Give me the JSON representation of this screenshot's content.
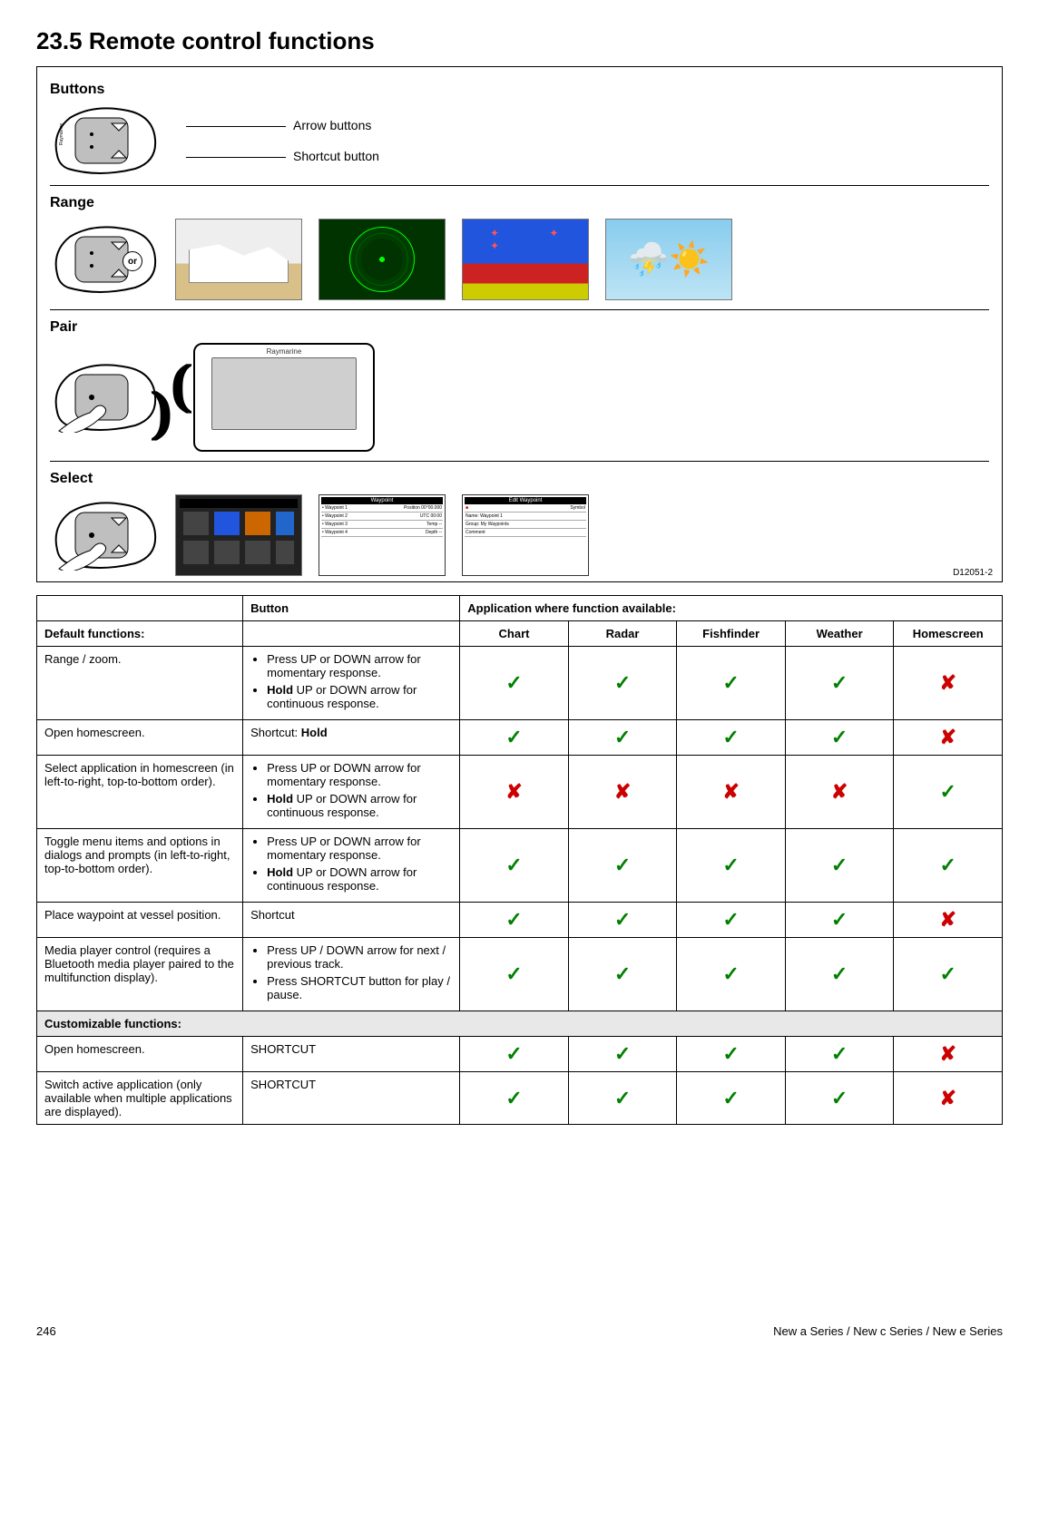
{
  "heading": "23.5 Remote control functions",
  "diagram": {
    "sections": {
      "buttons": "Buttons",
      "range": "Range",
      "pair": "Pair",
      "select": "Select"
    },
    "labels": {
      "arrow": "Arrow buttons",
      "shortcut": "Shortcut button"
    },
    "or_label": "or",
    "weather_glyph": "⛈️☀️",
    "id": "D12051-2"
  },
  "table": {
    "headers": {
      "button": "Button",
      "application": "Application where function available:",
      "default": "Default functions:",
      "custom": "Customizable functions:"
    },
    "apps": [
      "Chart",
      "Radar",
      "Fishfinder",
      "Weather",
      "Homescreen"
    ],
    "rows_default": [
      {
        "func": "Range / zoom.",
        "button_items": [
          {
            "pre": "Press UP or DOWN arrow for momentary response.",
            "bold": ""
          },
          {
            "pre": "",
            "bold": "Hold",
            "post": " UP or DOWN arrow for continuous response."
          }
        ],
        "marks": [
          "y",
          "y",
          "y",
          "y",
          "n"
        ]
      },
      {
        "func": "Open homescreen.",
        "button_plain_pre": "Shortcut: ",
        "button_plain_bold": "Hold",
        "marks": [
          "y",
          "y",
          "y",
          "y",
          "n"
        ]
      },
      {
        "func": "Select application in homescreen (in left-to-right, top-to-bottom order).",
        "button_items": [
          {
            "pre": "Press UP or DOWN arrow for momentary response.",
            "bold": ""
          },
          {
            "pre": "",
            "bold": "Hold",
            "post": " UP or DOWN arrow for continuous response."
          }
        ],
        "marks": [
          "n",
          "n",
          "n",
          "n",
          "y"
        ]
      },
      {
        "func": "Toggle menu items and options in dialogs and prompts (in left-to-right, top-to-bottom order).",
        "button_items": [
          {
            "pre": "Press UP or DOWN arrow for momentary response.",
            "bold": ""
          },
          {
            "pre": "",
            "bold": "Hold",
            "post": " UP or DOWN arrow for continuous response."
          }
        ],
        "marks": [
          "y",
          "y",
          "y",
          "y",
          "y"
        ]
      },
      {
        "func": "Place waypoint at vessel position.",
        "button_plain_pre": "Shortcut",
        "marks": [
          "y",
          "y",
          "y",
          "y",
          "n"
        ]
      },
      {
        "func": "Media player control (requires a Bluetooth media player paired to the multifunction display).",
        "button_items": [
          {
            "pre": "Press UP / DOWN arrow for next / previous track.",
            "bold": ""
          },
          {
            "pre": "Press SHORTCUT button for play / pause.",
            "bold": ""
          }
        ],
        "marks": [
          "y",
          "y",
          "y",
          "y",
          "y"
        ]
      }
    ],
    "rows_custom": [
      {
        "func": "Open homescreen.",
        "button_plain_pre": "SHORTCUT",
        "marks": [
          "y",
          "y",
          "y",
          "y",
          "n"
        ]
      },
      {
        "func": "Switch active application (only available when multiple applications are displayed).",
        "button_plain_pre": "SHORTCUT",
        "marks": [
          "y",
          "y",
          "y",
          "y",
          "n"
        ]
      }
    ]
  },
  "footer": {
    "page": "246",
    "doc": "New a Series / New c Series / New e Series"
  },
  "glyphs": {
    "check": "✓",
    "cross": "✘"
  },
  "colors": {
    "check": "#008000",
    "cross": "#cc0000",
    "border": "#000000"
  }
}
